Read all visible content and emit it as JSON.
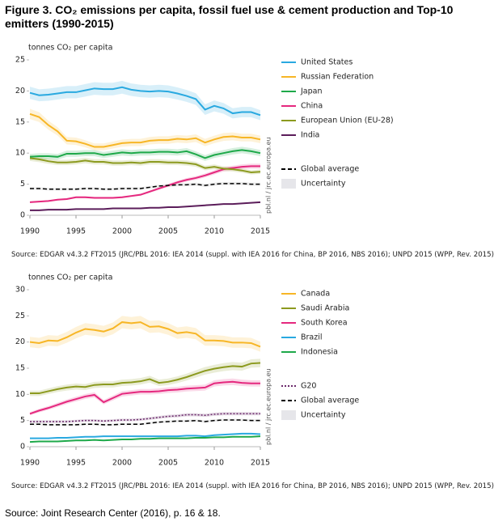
{
  "title": "Figure 3. CO₂ emissions per capita, fossil fuel use & cement production and Top-10 emitters (1990-2015)",
  "footer": "Source: Joint Research Center (2016), p. 16 & 18.",
  "chart_data": [
    {
      "type": "line",
      "y_label": "tonnes CO₂ per capita",
      "watermark": "pbl.nl / jrc.ec.europa.eu",
      "source": "Source: EDGAR v4.3.2 FT2015 (JRC/PBL 2016: IEA 2014 (suppl. with IEA 2016 for China, BP 2016, NBS 2016); UNPD 2015 (WPP, Rev. 2015)",
      "uncertainty_label": "Uncertainty",
      "uncertainty_pct": 5,
      "x": [
        1990,
        1991,
        1992,
        1993,
        1994,
        1995,
        1996,
        1997,
        1998,
        1999,
        2000,
        2001,
        2002,
        2003,
        2004,
        2005,
        2006,
        2007,
        2008,
        2009,
        2010,
        2011,
        2012,
        2013,
        2014,
        2015
      ],
      "xlim": [
        1990,
        2015
      ],
      "xticks": [
        1990,
        1995,
        2000,
        2005,
        2010,
        2015
      ],
      "ylim": [
        0,
        25
      ],
      "yticks": [
        0,
        5,
        10,
        15,
        20,
        25
      ],
      "series": [
        {
          "name": "United States",
          "color": "#29a9e0",
          "values": [
            19.7,
            19.3,
            19.4,
            19.6,
            19.8,
            19.8,
            20.1,
            20.4,
            20.3,
            20.3,
            20.6,
            20.2,
            20.0,
            19.9,
            20.0,
            19.9,
            19.6,
            19.2,
            18.7,
            17.0,
            17.6,
            17.2,
            16.4,
            16.6,
            16.6,
            16.1
          ]
        },
        {
          "name": "Russian Federation",
          "color": "#f7b626",
          "values": [
            16.3,
            15.8,
            14.5,
            13.5,
            12.0,
            11.9,
            11.5,
            11.0,
            11.0,
            11.3,
            11.6,
            11.7,
            11.7,
            12.0,
            12.1,
            12.1,
            12.3,
            12.2,
            12.4,
            11.7,
            12.2,
            12.6,
            12.7,
            12.5,
            12.5,
            12.2
          ]
        },
        {
          "name": "Japan",
          "color": "#1ea94a",
          "values": [
            9.4,
            9.5,
            9.5,
            9.4,
            9.9,
            9.9,
            10.0,
            10.0,
            9.7,
            9.9,
            10.1,
            10.0,
            10.1,
            10.1,
            10.2,
            10.2,
            10.1,
            10.3,
            9.8,
            9.2,
            9.7,
            10.0,
            10.3,
            10.5,
            10.3,
            10.0
          ]
        },
        {
          "name": "China",
          "color": "#e5287e",
          "values": [
            2.1,
            2.2,
            2.3,
            2.5,
            2.6,
            2.9,
            2.9,
            2.8,
            2.8,
            2.8,
            2.9,
            3.1,
            3.3,
            3.8,
            4.3,
            4.8,
            5.3,
            5.7,
            6.0,
            6.4,
            6.9,
            7.4,
            7.6,
            7.8,
            7.9,
            7.9
          ]
        },
        {
          "name": "European Union (EU-28)",
          "color": "#8c9a1f",
          "values": [
            9.2,
            9.0,
            8.7,
            8.5,
            8.5,
            8.6,
            8.8,
            8.6,
            8.6,
            8.4,
            8.4,
            8.5,
            8.4,
            8.6,
            8.6,
            8.5,
            8.5,
            8.4,
            8.2,
            7.6,
            7.8,
            7.5,
            7.4,
            7.2,
            6.9,
            7.0
          ]
        },
        {
          "name": "India",
          "color": "#5b1d5a",
          "values": [
            0.8,
            0.8,
            0.9,
            0.9,
            0.9,
            1.0,
            1.0,
            1.0,
            1.0,
            1.1,
            1.1,
            1.1,
            1.1,
            1.2,
            1.2,
            1.3,
            1.3,
            1.4,
            1.5,
            1.6,
            1.7,
            1.8,
            1.8,
            1.9,
            2.0,
            2.1
          ]
        },
        {
          "name": "Global average",
          "color": "#000000",
          "dash": "dashed",
          "values": [
            4.3,
            4.3,
            4.2,
            4.2,
            4.2,
            4.2,
            4.3,
            4.3,
            4.2,
            4.2,
            4.3,
            4.3,
            4.3,
            4.5,
            4.7,
            4.8,
            4.9,
            4.9,
            5.0,
            4.8,
            5.0,
            5.1,
            5.1,
            5.1,
            5.0,
            5.0
          ]
        }
      ]
    },
    {
      "type": "line",
      "y_label": "tonnes CO₂ per capita",
      "watermark": "pbl.nl / jrc.ec.europa.eu",
      "source": "Source: EDGAR v4.3.2 FT2015 (JRC/PBL 2016: IEA 2014 (suppl. with IEA 2016 for China, BP 2016, NBS 2016); UNPD 2015 (WPP, Rev. 2015)",
      "uncertainty_label": "Uncertainty",
      "uncertainty_pct": 5,
      "x": [
        1990,
        1991,
        1992,
        1993,
        1994,
        1995,
        1996,
        1997,
        1998,
        1999,
        2000,
        2001,
        2002,
        2003,
        2004,
        2005,
        2006,
        2007,
        2008,
        2009,
        2010,
        2011,
        2012,
        2013,
        2014,
        2015
      ],
      "xlim": [
        1990,
        2015
      ],
      "xticks": [
        1990,
        1995,
        2000,
        2005,
        2010,
        2015
      ],
      "ylim": [
        0,
        30
      ],
      "yticks": [
        0,
        5,
        10,
        15,
        20,
        25,
        30
      ],
      "series": [
        {
          "name": "Canada",
          "color": "#f7b626",
          "values": [
            20.0,
            19.8,
            20.3,
            20.2,
            20.9,
            21.8,
            22.5,
            22.3,
            22.0,
            22.6,
            23.8,
            23.6,
            23.8,
            22.9,
            23.0,
            22.5,
            21.7,
            21.9,
            21.6,
            20.3,
            20.3,
            20.2,
            19.9,
            19.9,
            19.8,
            19.1
          ]
        },
        {
          "name": "Saudi Arabia",
          "color": "#8c9a1f",
          "values": [
            10.2,
            10.2,
            10.6,
            11.0,
            11.3,
            11.5,
            11.4,
            11.8,
            11.9,
            11.9,
            12.2,
            12.3,
            12.5,
            12.9,
            12.2,
            12.4,
            12.8,
            13.3,
            13.9,
            14.5,
            14.9,
            15.2,
            15.4,
            15.3,
            15.9,
            16.0
          ]
        },
        {
          "name": "South Korea",
          "color": "#e5287e",
          "values": [
            6.3,
            6.9,
            7.4,
            8.0,
            8.6,
            9.1,
            9.6,
            9.9,
            8.5,
            9.3,
            10.1,
            10.3,
            10.5,
            10.5,
            10.6,
            10.8,
            10.9,
            11.1,
            11.2,
            11.3,
            12.1,
            12.3,
            12.4,
            12.2,
            12.1,
            12.1
          ]
        },
        {
          "name": "Brazil",
          "color": "#29a9e0",
          "values": [
            1.6,
            1.6,
            1.6,
            1.7,
            1.7,
            1.8,
            1.9,
            1.9,
            2.0,
            2.0,
            2.0,
            2.0,
            2.0,
            2.0,
            2.0,
            2.0,
            2.0,
            2.1,
            2.1,
            2.0,
            2.2,
            2.3,
            2.4,
            2.5,
            2.5,
            2.4
          ]
        },
        {
          "name": "Indonesia",
          "color": "#1ea94a",
          "values": [
            0.9,
            1.0,
            1.0,
            1.0,
            1.1,
            1.2,
            1.2,
            1.3,
            1.2,
            1.3,
            1.4,
            1.4,
            1.5,
            1.5,
            1.6,
            1.6,
            1.6,
            1.6,
            1.7,
            1.7,
            1.8,
            1.8,
            1.9,
            1.9,
            1.9,
            2.0
          ]
        },
        {
          "name": "G20",
          "color": "#6b2a6b",
          "dash": "dotted",
          "values": [
            4.8,
            4.8,
            4.8,
            4.8,
            4.8,
            4.9,
            5.0,
            5.0,
            4.9,
            5.0,
            5.1,
            5.1,
            5.2,
            5.4,
            5.6,
            5.8,
            5.9,
            6.1,
            6.1,
            6.0,
            6.2,
            6.3,
            6.3,
            6.3,
            6.3,
            6.3
          ]
        },
        {
          "name": "Global average",
          "color": "#000000",
          "dash": "dashed",
          "values": [
            4.3,
            4.3,
            4.2,
            4.2,
            4.2,
            4.2,
            4.3,
            4.3,
            4.2,
            4.2,
            4.3,
            4.3,
            4.3,
            4.5,
            4.7,
            4.8,
            4.9,
            4.9,
            5.0,
            4.8,
            5.0,
            5.1,
            5.1,
            5.1,
            5.0,
            5.0
          ]
        }
      ]
    }
  ]
}
